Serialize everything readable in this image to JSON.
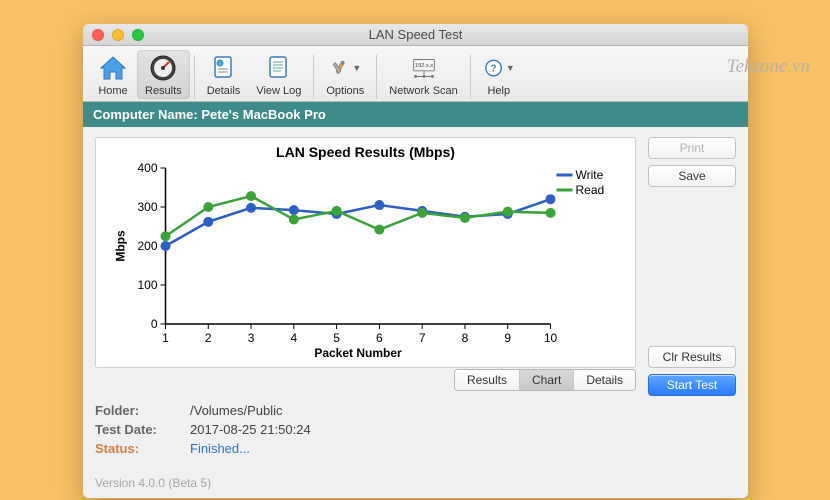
{
  "watermark": "Tekzone.vn",
  "window": {
    "title": "LAN Speed Test"
  },
  "toolbar": {
    "home": "Home",
    "results": "Results",
    "details": "Details",
    "viewlog": "View Log",
    "options": "Options",
    "netscan": "Network Scan",
    "help": "Help"
  },
  "computer_bar": "Computer Name: Pete's MacBook Pro",
  "chart": {
    "title": "LAN Speed Results (Mbps)",
    "ylabel": "Mbps",
    "xlabel": "Packet Number",
    "ylim": [
      0,
      400
    ],
    "ytick_step": 100,
    "xvalues": [
      1,
      2,
      3,
      4,
      5,
      6,
      7,
      8,
      9,
      10
    ],
    "series": [
      {
        "name": "Write",
        "color": "#2d5fc4",
        "values": [
          200,
          262,
          298,
          292,
          282,
          305,
          290,
          275,
          282,
          320
        ]
      },
      {
        "name": "Read",
        "color": "#3aa33a",
        "values": [
          225,
          300,
          328,
          268,
          290,
          242,
          285,
          272,
          288,
          285
        ]
      }
    ],
    "marker_radius": 5,
    "line_width": 2.5,
    "axis_color": "#000000",
    "background_color": "#ffffff"
  },
  "tabs": {
    "results": "Results",
    "chart": "Chart",
    "details": "Details"
  },
  "info": {
    "folder_label": "Folder:",
    "folder_value": "/Volumes/Public",
    "date_label": "Test Date:",
    "date_value": "2017-08-25 21:50:24",
    "status_label": "Status:",
    "status_value": "Finished..."
  },
  "version": "Version 4.0.0 (Beta 5)",
  "buttons": {
    "print": "Print",
    "save": "Save",
    "clr": "Clr Results",
    "start": "Start Test"
  }
}
